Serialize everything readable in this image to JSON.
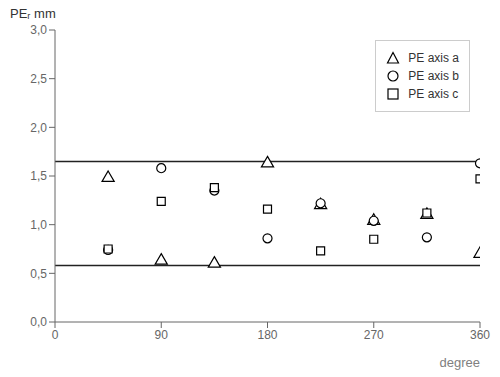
{
  "chart_data": {
    "type": "scatter",
    "x_label": "degree",
    "y_label": "PEᵣ mm",
    "xlim": [
      0,
      360
    ],
    "ylim": [
      0.0,
      3.0
    ],
    "xticks": [
      0,
      90,
      180,
      270,
      360
    ],
    "yticks": [
      {
        "value": 0.0,
        "label": "0,0"
      },
      {
        "value": 0.5,
        "label": "0,5"
      },
      {
        "value": 1.0,
        "label": "1,0"
      },
      {
        "value": 1.5,
        "label": "1,5"
      },
      {
        "value": 2.0,
        "label": "2,0"
      },
      {
        "value": 2.5,
        "label": "2,5"
      },
      {
        "value": 3.0,
        "label": "3,0"
      }
    ],
    "x": [
      45,
      90,
      135,
      180,
      225,
      270,
      315,
      360
    ],
    "series": [
      {
        "name": "PE axis a",
        "marker": "triangle",
        "color": "#000000",
        "values": [
          1.48,
          0.63,
          0.6,
          1.63,
          1.2,
          1.04,
          1.1,
          0.7
        ]
      },
      {
        "name": "PE axis b",
        "marker": "circle",
        "color": "#000000",
        "values": [
          0.74,
          1.58,
          1.35,
          0.86,
          1.22,
          1.04,
          0.87,
          1.63
        ]
      },
      {
        "name": "PE axis c",
        "marker": "square",
        "color": "#000000",
        "values": [
          0.75,
          1.24,
          1.38,
          1.16,
          0.73,
          0.85,
          1.12,
          1.47
        ]
      }
    ],
    "hlines": [
      {
        "value": 1.65,
        "color": "#222222"
      },
      {
        "value": 0.58,
        "color": "#222222"
      }
    ],
    "legend": "upper right",
    "grid": false
  }
}
